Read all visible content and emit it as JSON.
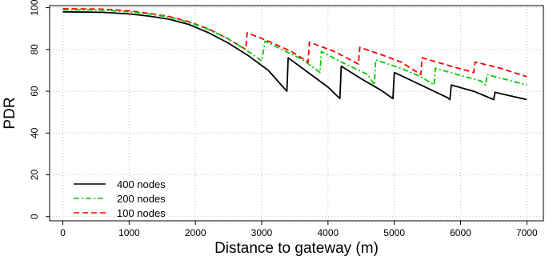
{
  "chart_data": {
    "type": "line",
    "xlabel": "Distance to gateway (m)",
    "ylabel": "PDR",
    "xlim": [
      -200,
      7250
    ],
    "ylim": [
      -2,
      101
    ],
    "xticks": [
      0,
      1000,
      2000,
      3000,
      4000,
      5000,
      6000,
      7000
    ],
    "yticks": [
      0,
      20,
      40,
      60,
      80,
      100
    ],
    "grid": true,
    "legend_position": "bottom-left",
    "series": [
      {
        "name": "400 nodes",
        "color": "#000000",
        "dash": "solid",
        "points": [
          [
            0,
            98
          ],
          [
            600,
            97.8
          ],
          [
            1000,
            97
          ],
          [
            1300,
            96
          ],
          [
            1600,
            94.5
          ],
          [
            1900,
            92
          ],
          [
            2200,
            88
          ],
          [
            2500,
            83
          ],
          [
            2800,
            77
          ],
          [
            3100,
            70
          ],
          [
            3380,
            60
          ],
          [
            3400,
            76
          ],
          [
            3700,
            69
          ],
          [
            4000,
            62
          ],
          [
            4180,
            56.5
          ],
          [
            4200,
            72
          ],
          [
            4500,
            66
          ],
          [
            4800,
            60.5
          ],
          [
            4980,
            56.5
          ],
          [
            5000,
            69
          ],
          [
            5400,
            63
          ],
          [
            5800,
            57
          ],
          [
            5840,
            56
          ],
          [
            5860,
            63
          ],
          [
            6200,
            60
          ],
          [
            6500,
            56
          ],
          [
            6520,
            59.5
          ],
          [
            7000,
            56
          ]
        ]
      },
      {
        "name": "200 nodes",
        "color": "#00cc00",
        "dash": "dash-dot",
        "points": [
          [
            0,
            99
          ],
          [
            600,
            98.8
          ],
          [
            1000,
            98
          ],
          [
            1300,
            97
          ],
          [
            1600,
            95.5
          ],
          [
            1900,
            93
          ],
          [
            2200,
            89.5
          ],
          [
            2500,
            85
          ],
          [
            2800,
            79
          ],
          [
            3000,
            74.5
          ],
          [
            3050,
            84
          ],
          [
            3300,
            80
          ],
          [
            3600,
            75.5
          ],
          [
            3880,
            69
          ],
          [
            3900,
            79
          ],
          [
            4200,
            74
          ],
          [
            4600,
            68
          ],
          [
            4700,
            63
          ],
          [
            4720,
            75
          ],
          [
            5100,
            71
          ],
          [
            5400,
            67
          ],
          [
            5600,
            63
          ],
          [
            5620,
            71
          ],
          [
            5950,
            68
          ],
          [
            6300,
            65
          ],
          [
            6380,
            63
          ],
          [
            6400,
            68
          ],
          [
            7000,
            63
          ]
        ]
      },
      {
        "name": "100 nodes",
        "color": "#ff0000",
        "dash": "dashed",
        "points": [
          [
            0,
            99.5
          ],
          [
            600,
            99.3
          ],
          [
            1000,
            98.5
          ],
          [
            1300,
            97.3
          ],
          [
            1600,
            95.8
          ],
          [
            1900,
            93.3
          ],
          [
            2200,
            89.8
          ],
          [
            2500,
            85
          ],
          [
            2760,
            80
          ],
          [
            2780,
            88
          ],
          [
            3100,
            84
          ],
          [
            3450,
            79
          ],
          [
            3700,
            74
          ],
          [
            3720,
            83.5
          ],
          [
            4100,
            79
          ],
          [
            4460,
            73
          ],
          [
            4480,
            81
          ],
          [
            4850,
            77
          ],
          [
            5100,
            74
          ],
          [
            5400,
            68
          ],
          [
            5420,
            76
          ],
          [
            5800,
            72.5
          ],
          [
            6200,
            69
          ],
          [
            6220,
            74
          ],
          [
            6600,
            71
          ],
          [
            7000,
            67
          ]
        ]
      }
    ]
  }
}
